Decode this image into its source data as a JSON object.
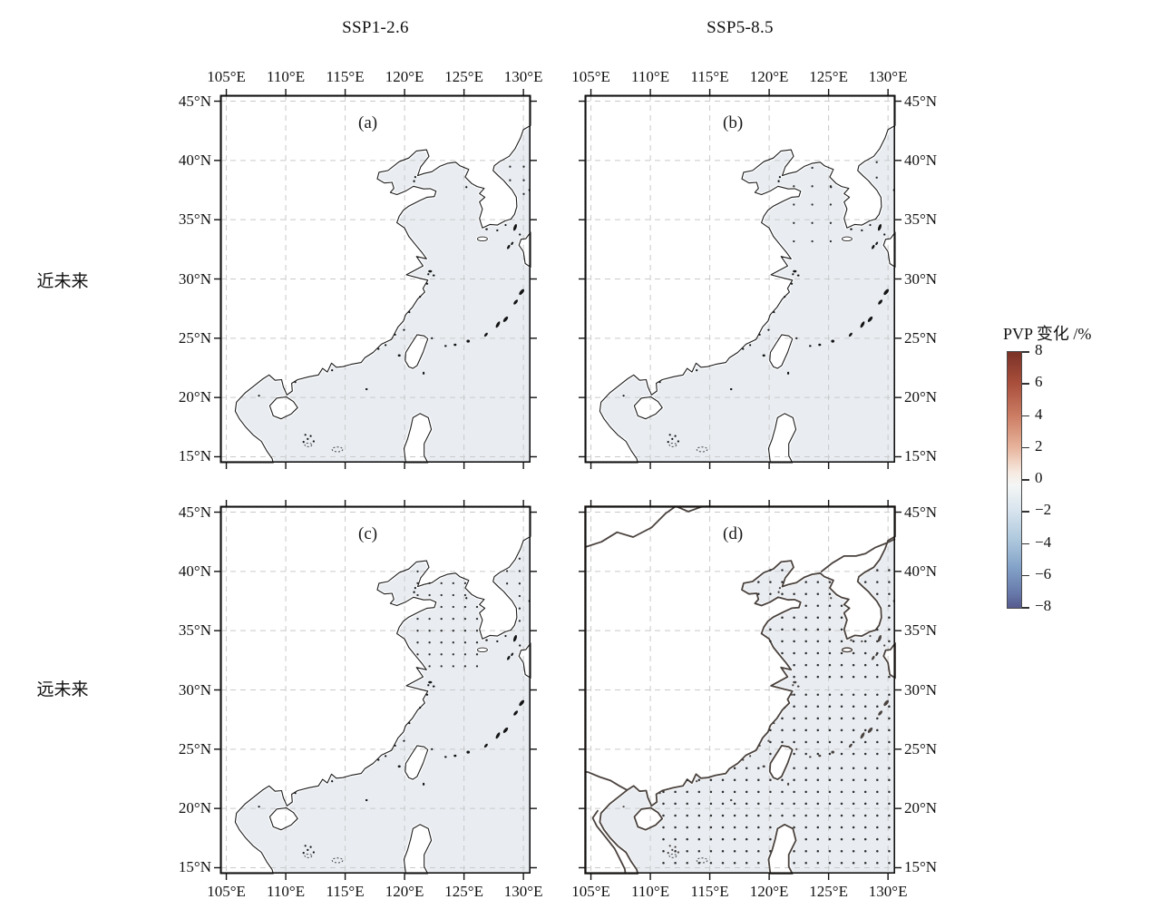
{
  "figure": {
    "column_titles": [
      "SSP1-2.6",
      "SSP5-8.5"
    ],
    "row_labels": [
      "近未来",
      "远未来"
    ],
    "panel_labels": [
      "(a)",
      "(b)",
      "(c)",
      "(d)"
    ]
  },
  "colorbar": {
    "title": "PVP 变化 /%",
    "ticks": [
      8,
      6,
      4,
      2,
      0,
      -2,
      -4,
      -6,
      -8
    ],
    "min": -8,
    "max": 8,
    "top_color": "#7b3227",
    "zero_color": "#f4f6f5",
    "bottom_color": "#555a8e"
  },
  "colors": {
    "sea": "#e9edf2",
    "land": "#ffffff",
    "coast_fine": "#1b1b1b",
    "coast_coarse": "#4a423e",
    "grid": "#c9c9c9",
    "stipple": "#2e2e2e",
    "frame": "#111111"
  },
  "chart_data": {
    "type": "heatmap",
    "subtype": "map-grid-of-4-panels",
    "title_columns": [
      "SSP1-2.6",
      "SSP5-8.5"
    ],
    "title_rows": [
      "近未来",
      "远未来"
    ],
    "value_label": "PVP 变化 /%",
    "value_range": [
      -8,
      8
    ],
    "sea_shading_percent_range": [
      -2,
      0
    ],
    "projection_extent": {
      "lon": [
        104.5,
        130.6
      ],
      "lat": [
        14.5,
        45.5
      ]
    },
    "x_ticks": [
      "105°E",
      "110°E",
      "115°E",
      "120°E",
      "125°E",
      "130°E"
    ],
    "x_tick_values": [
      105,
      110,
      115,
      120,
      125,
      130
    ],
    "y_ticks": [
      "45°N",
      "40°N",
      "35°N",
      "30°N",
      "25°N",
      "20°N",
      "15°N"
    ],
    "y_tick_values": [
      45,
      40,
      35,
      30,
      25,
      20,
      15
    ],
    "grid": true,
    "legend_position": "right",
    "panels": [
      {
        "id": "a",
        "label": "(a)",
        "scenario": "SSP1-2.6",
        "period": "近未来",
        "style": "fine",
        "axes": {
          "top": true,
          "bottom": false,
          "left": true,
          "right": false
        },
        "stipple_regions": [
          [
            128.3,
            130.45,
            36.6,
            40.2,
            1.15
          ]
        ]
      },
      {
        "id": "b",
        "label": "(b)",
        "scenario": "SSP5-8.5",
        "period": "近未来",
        "style": "fine",
        "axes": {
          "top": true,
          "bottom": false,
          "left": false,
          "right": true
        },
        "stipple_regions": [
          [
            121.3,
            127.3,
            32.4,
            39.9,
            1.55
          ],
          [
            128.4,
            130.45,
            36.6,
            40.2,
            1.3
          ]
        ]
      },
      {
        "id": "c",
        "label": "(c)",
        "scenario": "SSP1-2.6",
        "period": "远未来",
        "style": "fine",
        "axes": {
          "top": false,
          "bottom": true,
          "left": true,
          "right": false
        },
        "stipple_regions": [
          [
            120.6,
            126.9,
            31.5,
            40.4,
            1.0
          ],
          [
            128.1,
            130.45,
            35.3,
            42.2,
            1.05
          ]
        ]
      },
      {
        "id": "d",
        "label": "(d)",
        "scenario": "SSP5-8.5",
        "period": "远未来",
        "style": "coarse",
        "axes": {
          "top": false,
          "bottom": true,
          "left": false,
          "right": true
        },
        "stipple_regions": [
          [
            117.6,
            130.45,
            30.6,
            40.5,
            1.0
          ],
          [
            119.6,
            130.45,
            24.1,
            30.6,
            1.0
          ],
          [
            110.6,
            130.45,
            14.9,
            24.1,
            1.0
          ]
        ]
      }
    ]
  }
}
